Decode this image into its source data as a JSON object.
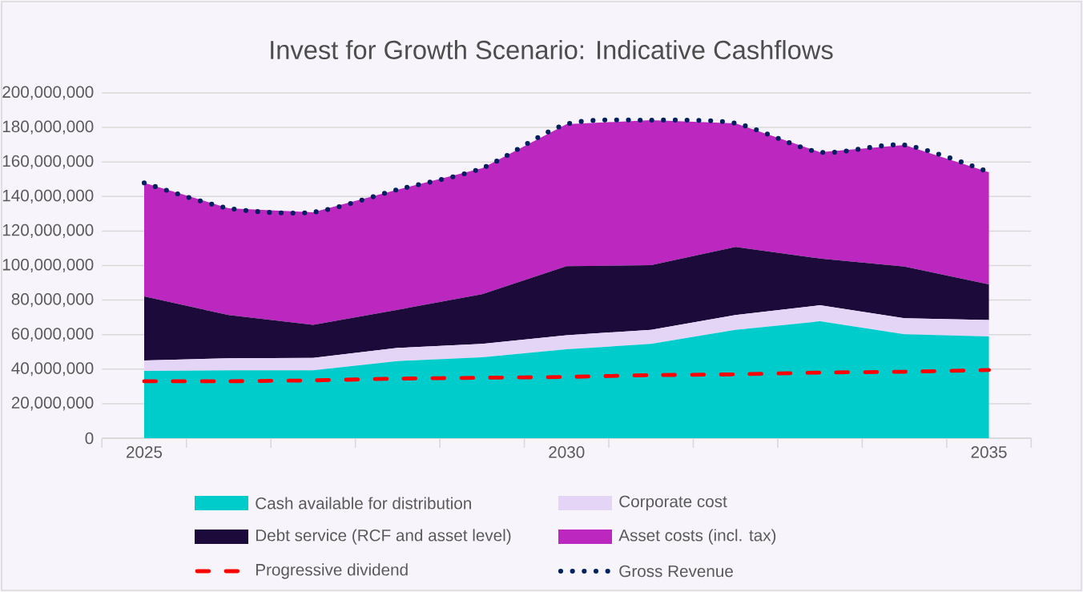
{
  "chart_data": {
    "type": "area",
    "title": "Invest for Growth Scenario: Indicative Cashflows",
    "categories": [
      "2025",
      null,
      null,
      null,
      null,
      "2030",
      null,
      null,
      null,
      null,
      "2035"
    ],
    "stacked": true,
    "ylim": [
      0,
      200000000
    ],
    "yticks": [
      0,
      {
        "value": 20000000,
        "label": "20,000,000"
      },
      {
        "value": 40000000,
        "label": "40,000,000"
      },
      {
        "value": 60000000,
        "label": "60,000,000"
      },
      {
        "value": 80000000,
        "label": "80,000,000"
      },
      {
        "value": 100000000,
        "label": "100,000,000"
      },
      {
        "value": 120000000,
        "label": "120,000,000"
      },
      {
        "value": 140000000,
        "label": "140,000,000"
      },
      {
        "value": 160000000,
        "label": "160,000,000"
      },
      {
        "value": 180000000,
        "label": "180,000,000"
      },
      {
        "value": 200000000,
        "label": "200,000,000"
      }
    ],
    "grid": "y",
    "legend": "bottom",
    "series": [
      {
        "name": "Cash available for distribution",
        "color": "#00cccc",
        "values": [
          39000000,
          39300000,
          39300000,
          44700000,
          46900000,
          51500000,
          54600000,
          62800000,
          67700000,
          60200000,
          58900000
        ]
      },
      {
        "name": "Corporate cost",
        "color": "#e4d5f7",
        "values": [
          6000000,
          7000000,
          7200000,
          7600000,
          7700000,
          8100000,
          8200000,
          8500000,
          9300000,
          9300000,
          9600000
        ]
      },
      {
        "name": "Debt service (RCF and asset level)",
        "color": "#1c0a3a",
        "values": [
          37100000,
          25000000,
          19200000,
          22100000,
          28800000,
          40000000,
          37400000,
          39500000,
          27100000,
          29900000,
          20600000
        ]
      },
      {
        "name": "Asset costs (incl. tax)",
        "color": "#bc27c0",
        "values": [
          65800000,
          61900000,
          65200000,
          69600000,
          73000000,
          82300000,
          84000000,
          71600000,
          61600000,
          70400000,
          65000000
        ]
      },
      {
        "name": "Progressive dividend",
        "type": "line",
        "color": "#ff0000",
        "line_style": "dashed",
        "values": [
          33000000,
          33000000,
          33500000,
          34500000,
          35000000,
          35500000,
          36500000,
          37000000,
          38000000,
          38500000,
          39500000
        ]
      },
      {
        "name": "Gross Revenue",
        "type": "line",
        "color": "#002060",
        "line_style": "dotted",
        "values": [
          147900000,
          133200000,
          130900000,
          144000000,
          156400000,
          181900000,
          184200000,
          182400000,
          165700000,
          169800000,
          154100000
        ]
      }
    ]
  }
}
